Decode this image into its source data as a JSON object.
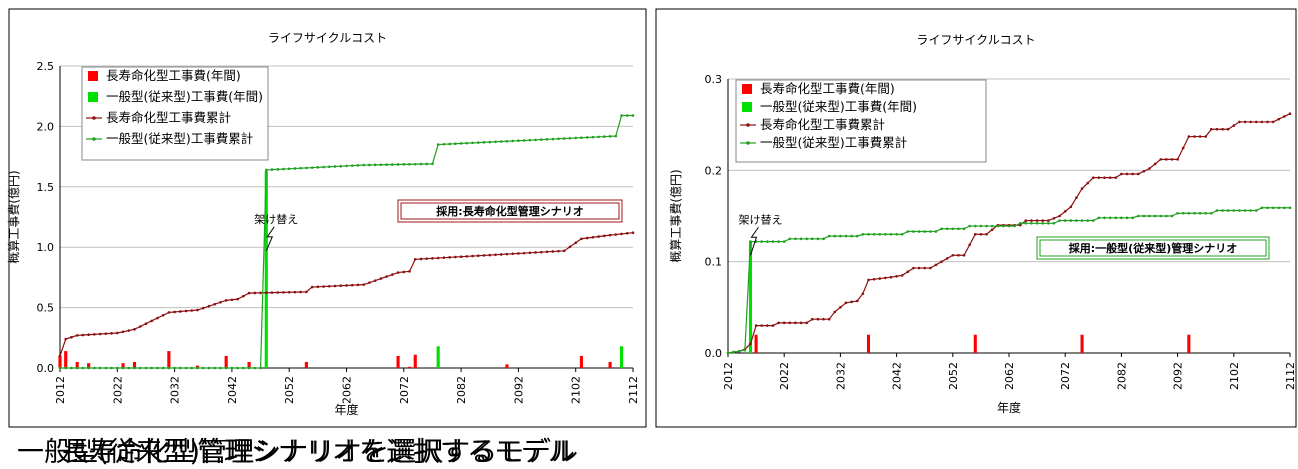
{
  "captions": {
    "left": "長寿命化型管理シナリオを選択するモデル",
    "right": "一般型(従来型)管理シナリオを選択するモデル"
  },
  "legend_labels": [
    "長寿命化型工事費(年間)",
    "一般型(従来型)工事費(年間)",
    "長寿命化型工事費累計",
    "一般型(従来型)工事費累計"
  ],
  "colors": {
    "red": "#ff0000",
    "green": "#00e000",
    "dark_red": "#8b1010",
    "dark_green": "#20a020",
    "grid": "#c0c0c0"
  },
  "chart_data": [
    {
      "type": "bar+line",
      "title": "ライフサイクルコスト",
      "xlabel": "年度",
      "ylabel": "概算工事費(億円)",
      "xlim": [
        2012,
        2112
      ],
      "x_ticks": [
        2012,
        2022,
        2032,
        2042,
        2052,
        2062,
        2072,
        2082,
        2092,
        2102,
        2112
      ],
      "y_ticks": [
        "0.0",
        "0.5",
        "1.0",
        "1.5",
        "2.0",
        "2.5"
      ],
      "ylim": [
        0,
        2.5
      ],
      "legend_position": "top-left",
      "annotation": {
        "text": "架け替え",
        "x": 2048,
        "y": 0.97
      },
      "adopted_label": "採用:長寿命化型管理シナリオ",
      "adopted_color": "#a01818",
      "series": [
        {
          "name": "長寿命化型工事費(年間)",
          "kind": "bar",
          "color": "#ff0000",
          "points": [
            [
              2012,
              0.1
            ],
            [
              2013,
              0.14
            ],
            [
              2015,
              0.05
            ],
            [
              2017,
              0.04
            ],
            [
              2023,
              0.04
            ],
            [
              2025,
              0.05
            ],
            [
              2031,
              0.14
            ],
            [
              2036,
              0.02
            ],
            [
              2041,
              0.1
            ],
            [
              2045,
              0.05
            ],
            [
              2055,
              0.05
            ],
            [
              2071,
              0.1
            ],
            [
              2073,
              0.01
            ],
            [
              2074,
              0.11
            ],
            [
              2090,
              0.03
            ],
            [
              2103,
              0.1
            ],
            [
              2108,
              0.05
            ]
          ]
        },
        {
          "name": "一般型(従来型)工事費(年間)",
          "kind": "bar",
          "color": "#00e000",
          "points": [
            [
              2048,
              1.63
            ],
            [
              2078,
              0.18
            ],
            [
              2110,
              0.18
            ]
          ]
        },
        {
          "name": "長寿命化型工事費累計",
          "kind": "line",
          "color": "#8b1010",
          "points": [
            [
              2012,
              0.1
            ],
            [
              2013,
              0.24
            ],
            [
              2015,
              0.27
            ],
            [
              2022,
              0.29
            ],
            [
              2025,
              0.32
            ],
            [
              2031,
              0.46
            ],
            [
              2036,
              0.48
            ],
            [
              2041,
              0.56
            ],
            [
              2043,
              0.57
            ],
            [
              2045,
              0.62
            ],
            [
              2055,
              0.63
            ],
            [
              2056,
              0.67
            ],
            [
              2065,
              0.69
            ],
            [
              2071,
              0.79
            ],
            [
              2073,
              0.8
            ],
            [
              2074,
              0.9
            ],
            [
              2089,
              0.94
            ],
            [
              2100,
              0.97
            ],
            [
              2103,
              1.07
            ],
            [
              2108,
              1.1
            ],
            [
              2112,
              1.12
            ]
          ]
        },
        {
          "name": "一般型(従来型)工事費累計",
          "kind": "line",
          "color": "#20a020",
          "points": [
            [
              2012,
              0
            ],
            [
              2047,
              0
            ],
            [
              2048,
              1.64
            ],
            [
              2065,
              1.68
            ],
            [
              2077,
              1.69
            ],
            [
              2078,
              1.85
            ],
            [
              2109,
              1.92
            ],
            [
              2110,
              2.09
            ],
            [
              2112,
              2.09
            ]
          ]
        }
      ]
    },
    {
      "type": "bar+line",
      "title": "ライフサイクルコスト",
      "xlabel": "年度",
      "ylabel": "概算工事費(億円)",
      "xlim": [
        2012,
        2112
      ],
      "x_ticks": [
        2012,
        2022,
        2032,
        2042,
        2052,
        2062,
        2072,
        2082,
        2092,
        2102,
        2112
      ],
      "y_ticks": [
        "0.0",
        "0.1",
        "0.2",
        "0.3"
      ],
      "ylim": [
        0,
        0.3
      ],
      "legend_position": "top-left",
      "annotation": {
        "text": "架け替え",
        "x": 2016,
        "y": 0.107
      },
      "adopted_label": "採用:一般型(従来型)管理シナリオ",
      "adopted_color": "#20a020",
      "series": [
        {
          "name": "長寿命化型工事費(年間)",
          "kind": "bar",
          "color": "#ff0000",
          "points": [
            [
              2017,
              0.02
            ],
            [
              2037,
              0.02
            ],
            [
              2056,
              0.02
            ],
            [
              2075,
              0.02
            ],
            [
              2094,
              0.02
            ]
          ]
        },
        {
          "name": "一般型(従来型)工事費(年間)",
          "kind": "bar",
          "color": "#00e000",
          "points": [
            [
              2016,
              0.122
            ]
          ]
        },
        {
          "name": "長寿命化型工事費累計",
          "kind": "line",
          "color": "#8b1010",
          "points": [
            [
              2012,
              0
            ],
            [
              2014,
              0.002
            ],
            [
              2015,
              0.004
            ],
            [
              2016,
              0.01
            ],
            [
              2017,
              0.03
            ],
            [
              2020,
              0.03
            ],
            [
              2021,
              0.033
            ],
            [
              2026,
              0.033
            ],
            [
              2027,
              0.037
            ],
            [
              2030,
              0.037
            ],
            [
              2031,
              0.045
            ],
            [
              2033,
              0.055
            ],
            [
              2035,
              0.057
            ],
            [
              2036,
              0.065
            ],
            [
              2037,
              0.08
            ],
            [
              2041,
              0.083
            ],
            [
              2043,
              0.085
            ],
            [
              2045,
              0.093
            ],
            [
              2048,
              0.093
            ],
            [
              2050,
              0.1
            ],
            [
              2052,
              0.107
            ],
            [
              2054,
              0.107
            ],
            [
              2056,
              0.13
            ],
            [
              2058,
              0.13
            ],
            [
              2060,
              0.14
            ],
            [
              2064,
              0.14
            ],
            [
              2065,
              0.145
            ],
            [
              2069,
              0.145
            ],
            [
              2071,
              0.15
            ],
            [
              2073,
              0.16
            ],
            [
              2075,
              0.18
            ],
            [
              2077,
              0.192
            ],
            [
              2081,
              0.192
            ],
            [
              2082,
              0.196
            ],
            [
              2085,
              0.196
            ],
            [
              2087,
              0.202
            ],
            [
              2089,
              0.212
            ],
            [
              2092,
              0.212
            ],
            [
              2094,
              0.237
            ],
            [
              2097,
              0.237
            ],
            [
              2098,
              0.245
            ],
            [
              2101,
              0.245
            ],
            [
              2103,
              0.253
            ],
            [
              2109,
              0.253
            ],
            [
              2112,
              0.262
            ]
          ]
        },
        {
          "name": "一般型(従来型)工事費累計",
          "kind": "line",
          "color": "#20a020",
          "points": [
            [
              2012,
              0
            ],
            [
              2014,
              0.002
            ],
            [
              2015,
              0.003
            ],
            [
              2016,
              0.122
            ],
            [
              2022,
              0.122
            ],
            [
              2023,
              0.125
            ],
            [
              2029,
              0.125
            ],
            [
              2030,
              0.128
            ],
            [
              2035,
              0.128
            ],
            [
              2036,
              0.13
            ],
            [
              2043,
              0.13
            ],
            [
              2044,
              0.133
            ],
            [
              2049,
              0.133
            ],
            [
              2050,
              0.136
            ],
            [
              2054,
              0.136
            ],
            [
              2055,
              0.139
            ],
            [
              2063,
              0.139
            ],
            [
              2064,
              0.142
            ],
            [
              2070,
              0.142
            ],
            [
              2071,
              0.145
            ],
            [
              2077,
              0.145
            ],
            [
              2078,
              0.148
            ],
            [
              2084,
              0.148
            ],
            [
              2085,
              0.15
            ],
            [
              2091,
              0.15
            ],
            [
              2092,
              0.153
            ],
            [
              2098,
              0.153
            ],
            [
              2099,
              0.156
            ],
            [
              2106,
              0.156
            ],
            [
              2107,
              0.159
            ],
            [
              2112,
              0.159
            ]
          ]
        }
      ]
    }
  ]
}
